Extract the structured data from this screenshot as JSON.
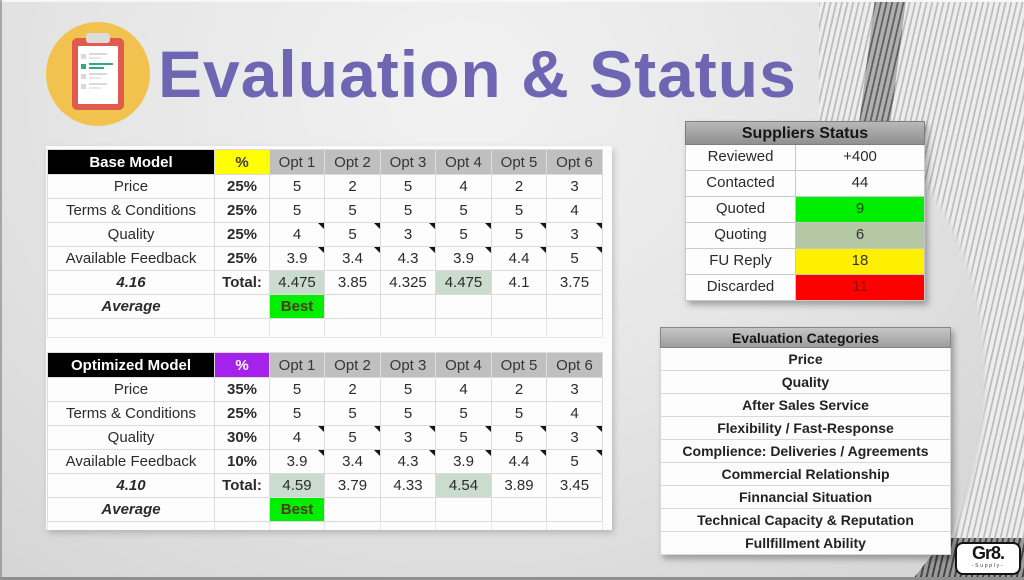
{
  "title": {
    "text": "Evaluation & Status"
  },
  "logo": {
    "main": "Gr8.",
    "sub": "-Supply-"
  },
  "shared": {
    "opt_headers": [
      "Opt 1",
      "Opt 2",
      "Opt 3",
      "Opt 4",
      "Opt 5",
      "Opt 6"
    ]
  },
  "base_model": {
    "name": "Base Model",
    "pct_header": "%",
    "rows": [
      {
        "label": "Price",
        "pct": "25%",
        "values": [
          "5",
          "2",
          "5",
          "4",
          "2",
          "3"
        ],
        "notes": false
      },
      {
        "label": "Terms & Conditions",
        "pct": "25%",
        "values": [
          "5",
          "5",
          "5",
          "5",
          "5",
          "4"
        ],
        "notes": false
      },
      {
        "label": "Quality",
        "pct": "25%",
        "values": [
          "4",
          "5",
          "3",
          "5",
          "5",
          "3"
        ],
        "notes": true
      },
      {
        "label": "Available Feedback",
        "pct": "25%",
        "values": [
          "3.9",
          "3.4",
          "4.3",
          "3.9",
          "4.4",
          "5"
        ],
        "notes": true
      }
    ],
    "average_value": "4.16",
    "total_label": "Total:",
    "totals": [
      "4.475",
      "3.85",
      "4.325",
      "4.475",
      "4.1",
      "3.75"
    ],
    "highlight_cols": [
      0,
      3
    ],
    "average_label": "Average",
    "best_label": "Best"
  },
  "optimized_model": {
    "name": "Optimized Model",
    "pct_header": "%",
    "rows": [
      {
        "label": "Price",
        "pct": "35%",
        "values": [
          "5",
          "2",
          "5",
          "4",
          "2",
          "3"
        ],
        "notes": false
      },
      {
        "label": "Terms & Conditions",
        "pct": "25%",
        "values": [
          "5",
          "5",
          "5",
          "5",
          "5",
          "4"
        ],
        "notes": false
      },
      {
        "label": "Quality",
        "pct": "30%",
        "values": [
          "4",
          "5",
          "3",
          "5",
          "5",
          "3"
        ],
        "notes": true
      },
      {
        "label": "Available Feedback",
        "pct": "10%",
        "values": [
          "3.9",
          "3.4",
          "4.3",
          "3.9",
          "4.4",
          "5"
        ],
        "notes": true
      }
    ],
    "average_value": "4.10",
    "total_label": "Total:",
    "totals": [
      "4.59",
      "3.79",
      "4.33",
      "4.54",
      "3.89",
      "3.45"
    ],
    "highlight_cols": [
      0,
      3
    ],
    "average_label": "Average",
    "best_label": "Best"
  },
  "suppliers_status": {
    "title": "Suppliers Status",
    "rows": [
      {
        "label": "Reviewed",
        "value": "+400",
        "color": "white"
      },
      {
        "label": "Contacted",
        "value": "44",
        "color": "white"
      },
      {
        "label": "Quoted",
        "value": "9",
        "color": "green"
      },
      {
        "label": "Quoting",
        "value": "6",
        "color": "sage"
      },
      {
        "label": "FU Reply",
        "value": "18",
        "color": "yellow"
      },
      {
        "label": "Discarded",
        "value": "11",
        "color": "red"
      }
    ],
    "status_colors": {
      "white": {
        "bg": "#fdfdfd",
        "fg": "#2b2b2b"
      },
      "green": {
        "bg": "#00ee00",
        "fg": "#27451c"
      },
      "sage": {
        "bg": "#b4c8a6",
        "fg": "#333333"
      },
      "yellow": {
        "bg": "#fff000",
        "fg": "#333333"
      },
      "red": {
        "bg": "#fe0000",
        "fg": "#8c1111"
      }
    }
  },
  "evaluation_categories": {
    "title": "Evaluation Categories",
    "items": [
      "Price",
      "Quality",
      "After Sales Service",
      "Flexibility / Fast-Response",
      "Complience: Deliveries / Agreements",
      "Commercial Relationship",
      "Finnancial Situation",
      "Technical Capacity & Reputation",
      "Fullfillment Ability"
    ]
  },
  "theme_colors": {
    "title_purple": "#6e65b3",
    "icon_circle_yellow": "#f1c34e",
    "icon_clipboard_red": "#e05a4d",
    "icon_check_green": "#2fa98c",
    "icon_gray_line": "#d9d9d9",
    "base_pct_header_bg": "#ffff00",
    "optimized_pct_header_bg": "#a522ec",
    "base_pct_text": "#e0414b",
    "optimized_pct_text": "#9b30d9",
    "average_blue": "#3a3ad0",
    "total_highlight_bg": "#c9dccd",
    "best_bg": "#00ee00",
    "header_black_bg": "#000000",
    "opt_header_gray_bg": "#bfbfbf"
  }
}
